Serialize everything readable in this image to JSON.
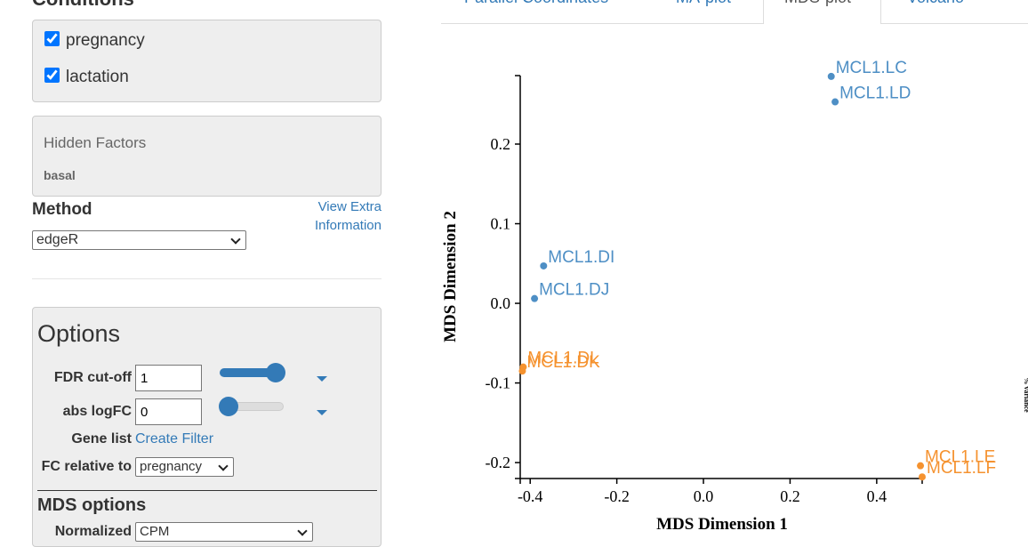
{
  "header": {
    "title": "Conditions"
  },
  "conditions": [
    {
      "label": "pregnancy",
      "checked": true
    },
    {
      "label": "lactation",
      "checked": true
    }
  ],
  "hidden_factors": {
    "title": "Hidden Factors",
    "items": [
      "basal"
    ]
  },
  "method": {
    "label": "Method",
    "link": "View Extra Information",
    "value": "edgeR"
  },
  "options": {
    "title": "Options",
    "fdr": {
      "label": "FDR cut-off",
      "value": 1
    },
    "logfc": {
      "label": "abs logFC",
      "value": 0
    },
    "gene_list": {
      "label": "Gene list",
      "link": "Create Filter"
    },
    "fc_relative": {
      "label": "FC relative to",
      "value": "pregnancy"
    },
    "mds_title": "MDS options",
    "normalized": {
      "label": "Normalized",
      "value": "CPM"
    }
  },
  "tabs": [
    "Parallel Coordinates",
    "MA-plot",
    "MDS-plot",
    "Volcano"
  ],
  "chart_data": {
    "type": "scatter",
    "xlabel": "MDS Dimension 1",
    "ylabel": "MDS Dimension 2",
    "annotation": "% variance",
    "xlim": [
      -0.423,
      0.505
    ],
    "ylim": [
      -0.22,
      0.286
    ],
    "xticks": [
      -0.4,
      -0.2,
      {
        "value": 0,
        "label": "0.0"
      },
      0.2,
      0.4
    ],
    "yticks": [
      -0.2,
      -0.1,
      {
        "value": 0,
        "label": "0.0"
      },
      0.1,
      0.2
    ],
    "series": [
      {
        "color": "#4e8fc5",
        "labels": [
          "MCL1.LC",
          "MCL1.LD",
          "MCL1.DI",
          "MCL1.DJ"
        ],
        "x": [
          0.295,
          0.304,
          -0.369,
          -0.39
        ],
        "y": [
          0.285,
          0.253,
          0.047,
          0.006
        ]
      },
      {
        "color": "#f5922f",
        "labels": [
          "MCL1.DK",
          "MCL1.DL",
          "MCL1.LE",
          "MCL1.LF"
        ],
        "x": [
          -0.418,
          -0.416,
          0.501,
          0.505
        ],
        "y": [
          -0.085,
          -0.08,
          -0.204,
          -0.218
        ]
      }
    ]
  }
}
